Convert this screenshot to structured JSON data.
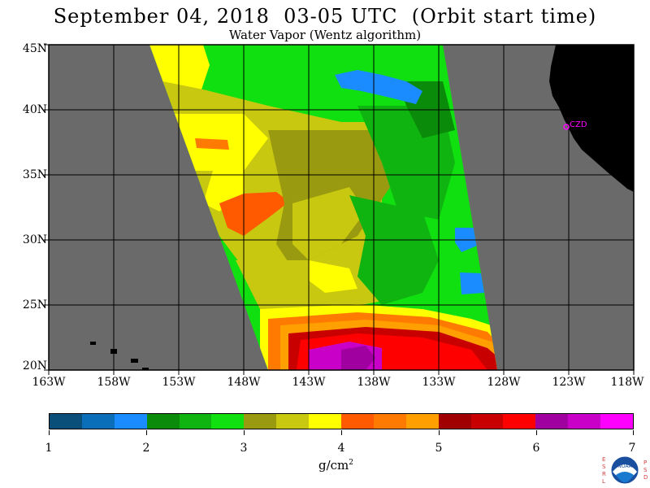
{
  "title": "September 04, 2018  03-05 UTC  (Orbit start time)",
  "subtitle": "Water Vapor (Wentz algorithm)",
  "lat_labels": [
    "45N",
    "40N",
    "35N",
    "30N",
    "25N",
    "20N"
  ],
  "lon_labels": [
    "163W",
    "158W",
    "153W",
    "148W",
    "143W",
    "138W",
    "133W",
    "128W",
    "123W",
    "118W"
  ],
  "station_label": "CZD",
  "colorbar": {
    "colors": [
      "#0a4f7a",
      "#0a6fb8",
      "#1a8cff",
      "#0a8c0a",
      "#10b410",
      "#10e010",
      "#9a9a10",
      "#c8c810",
      "#ffff00",
      "#ff5a00",
      "#ff7a00",
      "#ffa000",
      "#a00000",
      "#c80000",
      "#ff0000",
      "#a000a0",
      "#c800c8",
      "#ff00ff"
    ],
    "tick_labels": [
      "1",
      "2",
      "3",
      "4",
      "5",
      "6",
      "7"
    ],
    "units_main": "g/cm",
    "units_sup": "2"
  },
  "logo": {
    "left_letters": "ESRL",
    "right_letters": "PSD",
    "center": "NOAA"
  }
}
